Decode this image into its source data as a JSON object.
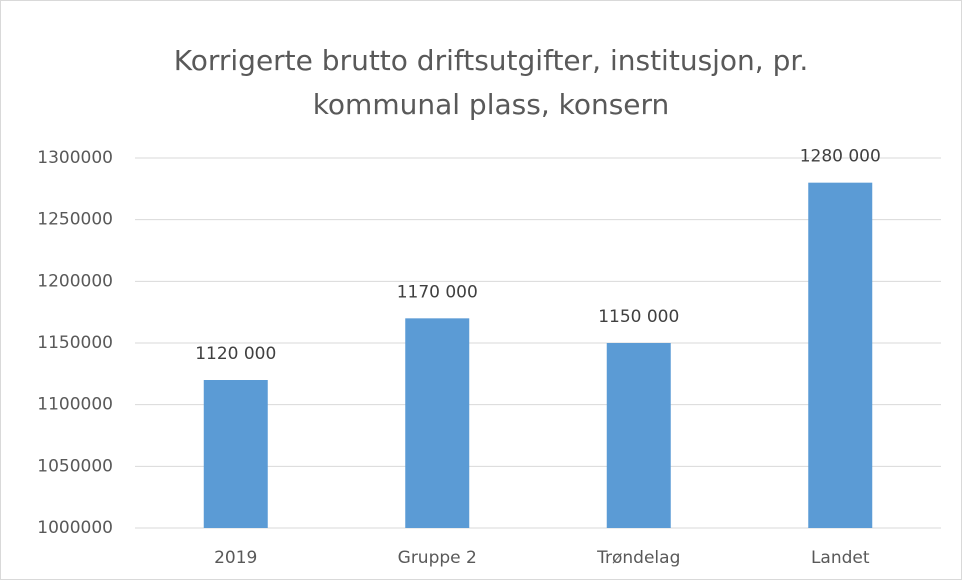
{
  "chart_data": {
    "type": "bar",
    "title": "Korrigerte brutto driftsutgifter, institusjon, pr. kommunal plass, konsern",
    "categories": [
      "2019",
      "Gruppe 2",
      "Trøndelag",
      "Landet"
    ],
    "values": [
      1120000,
      1170000,
      1150000,
      1280000
    ],
    "value_labels": [
      "1120 000",
      "1170 000",
      "1150 000",
      "1280 000"
    ],
    "color": "#5b9bd5",
    "ylim": [
      1000000,
      1300000
    ],
    "yticks": [
      1000000,
      1050000,
      1100000,
      1150000,
      1200000,
      1250000,
      1300000
    ],
    "grid": true
  }
}
